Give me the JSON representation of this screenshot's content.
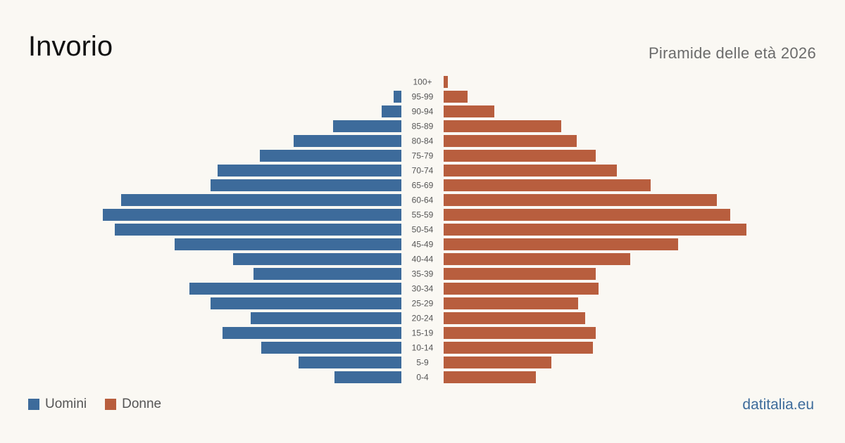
{
  "header": {
    "title": "Invorio",
    "subtitle": "Piramide delle età 2026"
  },
  "legend": [
    {
      "label": "Uomini",
      "color": "#3d6b9b"
    },
    {
      "label": "Donne",
      "color": "#b85e3e"
    }
  ],
  "brand": {
    "label": "datitalia.eu",
    "color": "#3d6b9b"
  },
  "chart_data": {
    "type": "bar",
    "orientation": "horizontal",
    "layout": "population-pyramid",
    "categories": [
      "0-4",
      "5-9",
      "10-14",
      "15-19",
      "20-24",
      "25-29",
      "30-34",
      "35-39",
      "40-44",
      "45-49",
      "50-54",
      "55-59",
      "60-64",
      "65-69",
      "70-74",
      "75-79",
      "80-84",
      "85-89",
      "90-94",
      "95-99",
      "100+"
    ],
    "series": [
      {
        "name": "Uomini",
        "color": "#3d6b9b",
        "side": "left",
        "values": [
          95,
          146,
          199,
          254,
          214,
          271,
          301,
          210,
          239,
          322,
          407,
          424,
          398,
          271,
          261,
          201,
          153,
          97,
          28,
          11,
          0
        ]
      },
      {
        "name": "Donne",
        "color": "#b85e3e",
        "side": "right",
        "values": [
          131,
          153,
          212,
          216,
          201,
          191,
          220,
          216,
          265,
          333,
          430,
          407,
          388,
          294,
          246,
          216,
          189,
          167,
          72,
          34,
          6
        ]
      }
    ],
    "xlim": [
      0,
      430
    ],
    "grid": false,
    "legend_position": "bottom-left"
  }
}
